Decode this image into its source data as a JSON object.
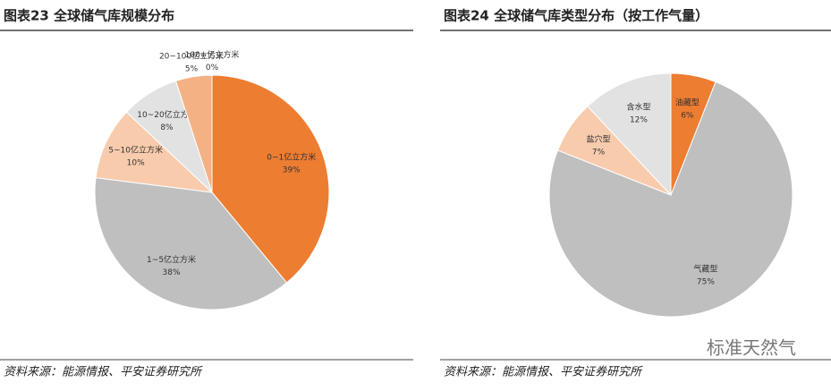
{
  "chart_data": [
    {
      "type": "pie",
      "title": "图表23  全球储气库规模分布",
      "categories": [
        "0~1亿立方米",
        "1~5亿立方米",
        "5~10亿立方米",
        "10~20亿立方米",
        "20~100亿立方米",
        "100+亿立方米"
      ],
      "values": [
        39,
        38,
        10,
        8,
        5,
        0
      ],
      "value_labels": [
        "39%",
        "38%",
        "10%",
        "8%",
        "5%",
        "0%"
      ],
      "colors": [
        "#ed7d31",
        "#bfbfbf",
        "#f8cbad",
        "#e2e2e2",
        "#f4b183",
        "#c55a11"
      ],
      "source": "资料来源：能源情报、平安证券研究所"
    },
    {
      "type": "pie",
      "title": "图表24  全球储气库类型分布（按工作气量）",
      "categories": [
        "油藏型",
        "气藏型",
        "盐穴型",
        "含水型"
      ],
      "values": [
        6,
        75,
        7,
        12
      ],
      "value_labels": [
        "6%",
        "75%",
        "7%",
        "12%"
      ],
      "colors": [
        "#ed7d31",
        "#bfbfbf",
        "#f8cbad",
        "#e2e2e2"
      ],
      "source": "资料来源：能源情报、平安证券研究所"
    }
  ],
  "brand": "标准天然气"
}
